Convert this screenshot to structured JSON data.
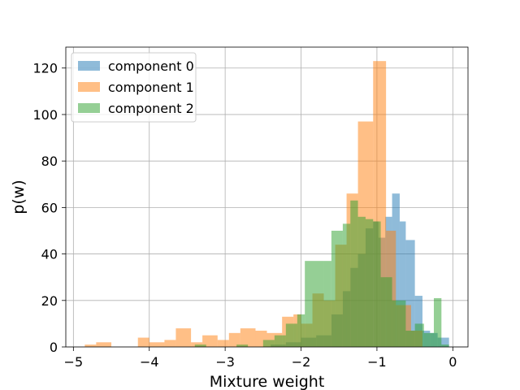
{
  "chart_data": {
    "type": "histogram",
    "xlabel": "Mixture weight",
    "ylabel": "p(w)",
    "xlim": [
      -5.1,
      0.2
    ],
    "ylim": [
      0,
      129
    ],
    "xticks": [
      -5,
      -4,
      -3,
      -2,
      -1,
      0
    ],
    "xtick_labels": [
      "−5",
      "−4",
      "−3",
      "−2",
      "−1",
      "0"
    ],
    "yticks": [
      0,
      20,
      40,
      60,
      80,
      100,
      120
    ],
    "ytick_labels": [
      "0",
      "20",
      "40",
      "60",
      "80",
      "100",
      "120"
    ],
    "grid": true,
    "legend_position": "upper-left",
    "series": [
      {
        "name": "component 0",
        "color": "#1f77b4",
        "bins": [
          {
            "x0": -2.4,
            "x1": -2.2,
            "y": 1
          },
          {
            "x0": -2.2,
            "x1": -2.0,
            "y": 2
          },
          {
            "x0": -2.0,
            "x1": -1.8,
            "y": 4
          },
          {
            "x0": -1.8,
            "x1": -1.6,
            "y": 5
          },
          {
            "x0": -1.6,
            "x1": -1.45,
            "y": 14
          },
          {
            "x0": -1.45,
            "x1": -1.35,
            "y": 24
          },
          {
            "x0": -1.35,
            "x1": -1.25,
            "y": 34
          },
          {
            "x0": -1.25,
            "x1": -1.15,
            "y": 40
          },
          {
            "x0": -1.15,
            "x1": -1.05,
            "y": 51
          },
          {
            "x0": -1.05,
            "x1": -0.98,
            "y": 54
          },
          {
            "x0": -0.98,
            "x1": -0.89,
            "y": 47
          },
          {
            "x0": -0.89,
            "x1": -0.8,
            "y": 56
          },
          {
            "x0": -0.8,
            "x1": -0.7,
            "y": 66
          },
          {
            "x0": -0.7,
            "x1": -0.62,
            "y": 54
          },
          {
            "x0": -0.62,
            "x1": -0.5,
            "y": 46
          },
          {
            "x0": -0.5,
            "x1": -0.4,
            "y": 22
          },
          {
            "x0": -0.4,
            "x1": -0.3,
            "y": 7
          },
          {
            "x0": -0.3,
            "x1": -0.2,
            "y": 6
          },
          {
            "x0": -0.2,
            "x1": -0.05,
            "y": 4
          }
        ]
      },
      {
        "name": "component 1",
        "color": "#ff7f0e",
        "bins": [
          {
            "x0": -4.85,
            "x1": -4.7,
            "y": 1
          },
          {
            "x0": -4.7,
            "x1": -4.5,
            "y": 2
          },
          {
            "x0": -4.15,
            "x1": -4.0,
            "y": 4
          },
          {
            "x0": -4.0,
            "x1": -3.8,
            "y": 2
          },
          {
            "x0": -3.8,
            "x1": -3.65,
            "y": 3
          },
          {
            "x0": -3.65,
            "x1": -3.45,
            "y": 8
          },
          {
            "x0": -3.45,
            "x1": -3.3,
            "y": 2
          },
          {
            "x0": -3.3,
            "x1": -3.1,
            "y": 5
          },
          {
            "x0": -3.1,
            "x1": -2.95,
            "y": 3
          },
          {
            "x0": -2.95,
            "x1": -2.8,
            "y": 6
          },
          {
            "x0": -2.8,
            "x1": -2.6,
            "y": 8
          },
          {
            "x0": -2.6,
            "x1": -2.45,
            "y": 7
          },
          {
            "x0": -2.45,
            "x1": -2.25,
            "y": 6
          },
          {
            "x0": -2.25,
            "x1": -2.1,
            "y": 13
          },
          {
            "x0": -2.1,
            "x1": -2.0,
            "y": 14
          },
          {
            "x0": -2.0,
            "x1": -1.85,
            "y": 10
          },
          {
            "x0": -1.85,
            "x1": -1.7,
            "y": 23
          },
          {
            "x0": -1.7,
            "x1": -1.55,
            "y": 20
          },
          {
            "x0": -1.55,
            "x1": -1.4,
            "y": 44
          },
          {
            "x0": -1.4,
            "x1": -1.25,
            "y": 66
          },
          {
            "x0": -1.25,
            "x1": -1.05,
            "y": 97
          },
          {
            "x0": -1.05,
            "x1": -0.88,
            "y": 123
          },
          {
            "x0": -0.88,
            "x1": -0.75,
            "y": 50
          },
          {
            "x0": -0.75,
            "x1": -0.55,
            "y": 18
          },
          {
            "x0": -0.55,
            "x1": -0.4,
            "y": 7
          }
        ]
      },
      {
        "name": "component 2",
        "color": "#2ca02c",
        "bins": [
          {
            "x0": -3.4,
            "x1": -3.25,
            "y": 1
          },
          {
            "x0": -2.85,
            "x1": -2.7,
            "y": 1
          },
          {
            "x0": -2.5,
            "x1": -2.35,
            "y": 3
          },
          {
            "x0": -2.35,
            "x1": -2.2,
            "y": 5
          },
          {
            "x0": -2.2,
            "x1": -2.05,
            "y": 10
          },
          {
            "x0": -2.05,
            "x1": -1.95,
            "y": 14
          },
          {
            "x0": -1.95,
            "x1": -1.7,
            "y": 37
          },
          {
            "x0": -1.7,
            "x1": -1.6,
            "y": 37
          },
          {
            "x0": -1.6,
            "x1": -1.45,
            "y": 50
          },
          {
            "x0": -1.45,
            "x1": -1.35,
            "y": 53
          },
          {
            "x0": -1.35,
            "x1": -1.25,
            "y": 63
          },
          {
            "x0": -1.25,
            "x1": -1.15,
            "y": 56
          },
          {
            "x0": -1.15,
            "x1": -1.05,
            "y": 55
          },
          {
            "x0": -1.05,
            "x1": -0.95,
            "y": 54
          },
          {
            "x0": -0.95,
            "x1": -0.8,
            "y": 30
          },
          {
            "x0": -0.8,
            "x1": -0.72,
            "y": 20
          },
          {
            "x0": -0.72,
            "x1": -0.62,
            "y": 20
          },
          {
            "x0": -0.62,
            "x1": -0.5,
            "y": 7
          },
          {
            "x0": -0.5,
            "x1": -0.38,
            "y": 10
          },
          {
            "x0": -0.38,
            "x1": -0.25,
            "y": 6
          },
          {
            "x0": -0.25,
            "x1": -0.15,
            "y": 21
          },
          {
            "x0": -0.15,
            "x1": -0.05,
            "y": 1
          }
        ]
      }
    ]
  }
}
